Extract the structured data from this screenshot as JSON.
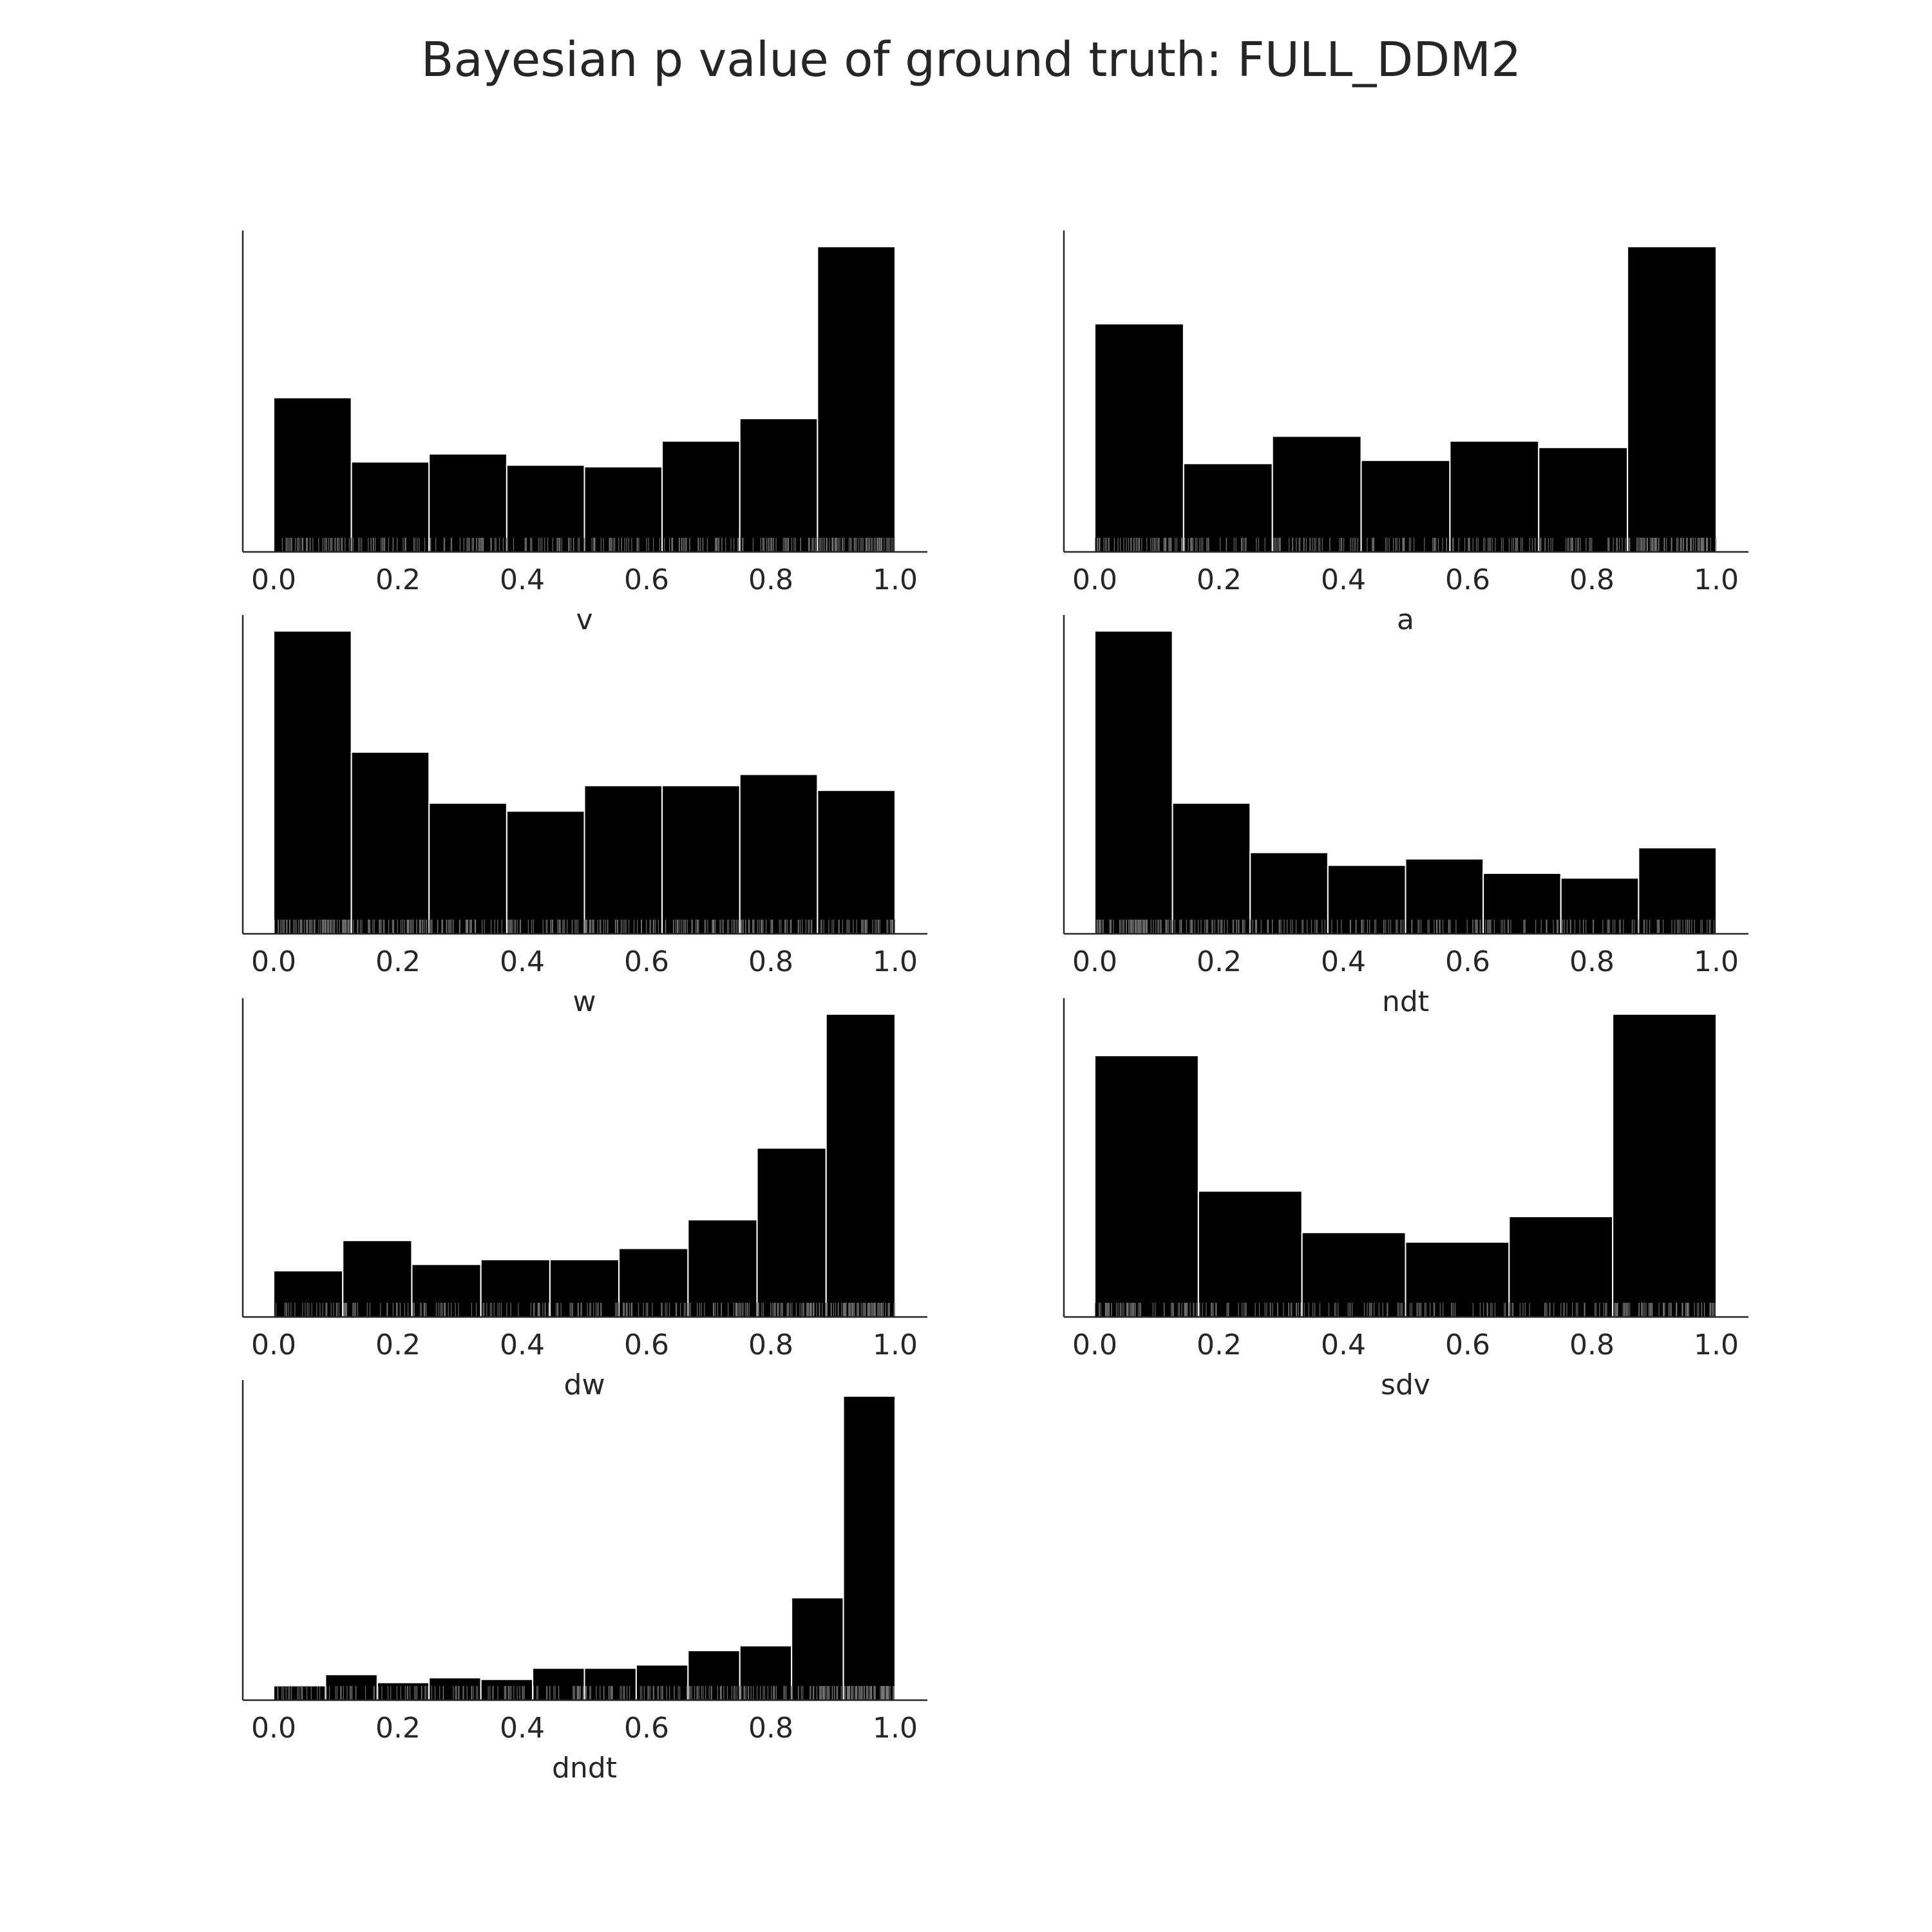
{
  "figure": {
    "title": "Bayesian p value of ground truth: FULL_DDM2",
    "bar_color": "#000000",
    "edge_color": "#ffffff",
    "axis_color": "#262626"
  },
  "chart_data": [
    {
      "type": "bar",
      "xlabel": "v",
      "xlim": [
        0,
        1
      ],
      "xticks": [
        "0.0",
        "0.2",
        "0.4",
        "0.6",
        "0.8",
        "1.0"
      ],
      "bins": 8,
      "values": [
        0.48,
        0.28,
        0.305,
        0.27,
        0.265,
        0.345,
        0.415,
        0.95
      ],
      "ylim": [
        0,
        1
      ],
      "rug": true,
      "grid": false,
      "legend": false
    },
    {
      "type": "bar",
      "xlabel": "a",
      "xlim": [
        0,
        1
      ],
      "xticks": [
        "0.0",
        "0.2",
        "0.4",
        "0.6",
        "0.8",
        "1.0"
      ],
      "bins": 7,
      "values": [
        0.71,
        0.275,
        0.36,
        0.285,
        0.345,
        0.325,
        0.95
      ],
      "ylim": [
        0,
        1
      ],
      "rug": true,
      "grid": false,
      "legend": false
    },
    {
      "type": "bar",
      "xlabel": "w",
      "xlim": [
        0,
        1
      ],
      "xticks": [
        "0.0",
        "0.2",
        "0.4",
        "0.6",
        "0.8",
        "1.0"
      ],
      "bins": 8,
      "values": [
        0.95,
        0.57,
        0.41,
        0.385,
        0.465,
        0.465,
        0.5,
        0.45
      ],
      "ylim": [
        0,
        1
      ],
      "rug": true,
      "grid": false,
      "legend": false
    },
    {
      "type": "bar",
      "xlabel": "ndt",
      "xlim": [
        0,
        1
      ],
      "xticks": [
        "0.0",
        "0.2",
        "0.4",
        "0.6",
        "0.8",
        "1.0"
      ],
      "bins": 8,
      "values": [
        0.95,
        0.41,
        0.255,
        0.215,
        0.235,
        0.19,
        0.175,
        0.27
      ],
      "ylim": [
        0,
        1
      ],
      "rug": true,
      "grid": false,
      "legend": false
    },
    {
      "type": "bar",
      "xlabel": "dw",
      "xlim": [
        0,
        1
      ],
      "xticks": [
        "0.0",
        "0.2",
        "0.4",
        "0.6",
        "0.8",
        "1.0"
      ],
      "bins": 9,
      "values": [
        0.145,
        0.24,
        0.165,
        0.18,
        0.18,
        0.215,
        0.305,
        0.53,
        0.95
      ],
      "ylim": [
        0,
        1
      ],
      "rug": true,
      "grid": false,
      "legend": false
    },
    {
      "type": "bar",
      "xlabel": "sdv",
      "xlim": [
        0,
        1
      ],
      "xticks": [
        "0.0",
        "0.2",
        "0.4",
        "0.6",
        "0.8",
        "1.0"
      ],
      "bins": 6,
      "values": [
        0.82,
        0.395,
        0.265,
        0.235,
        0.315,
        0.95
      ],
      "ylim": [
        0,
        1
      ],
      "rug": true,
      "grid": false,
      "legend": false
    },
    {
      "type": "bar",
      "xlabel": "dndt",
      "xlim": [
        0,
        1
      ],
      "xticks": [
        "0.0",
        "0.2",
        "0.4",
        "0.6",
        "0.8",
        "1.0"
      ],
      "bins": 12,
      "values": [
        0.045,
        0.08,
        0.055,
        0.07,
        0.065,
        0.1,
        0.1,
        0.11,
        0.155,
        0.17,
        0.32,
        0.95
      ],
      "ylim": [
        0,
        1
      ],
      "rug": true,
      "grid": false,
      "legend": false
    }
  ]
}
